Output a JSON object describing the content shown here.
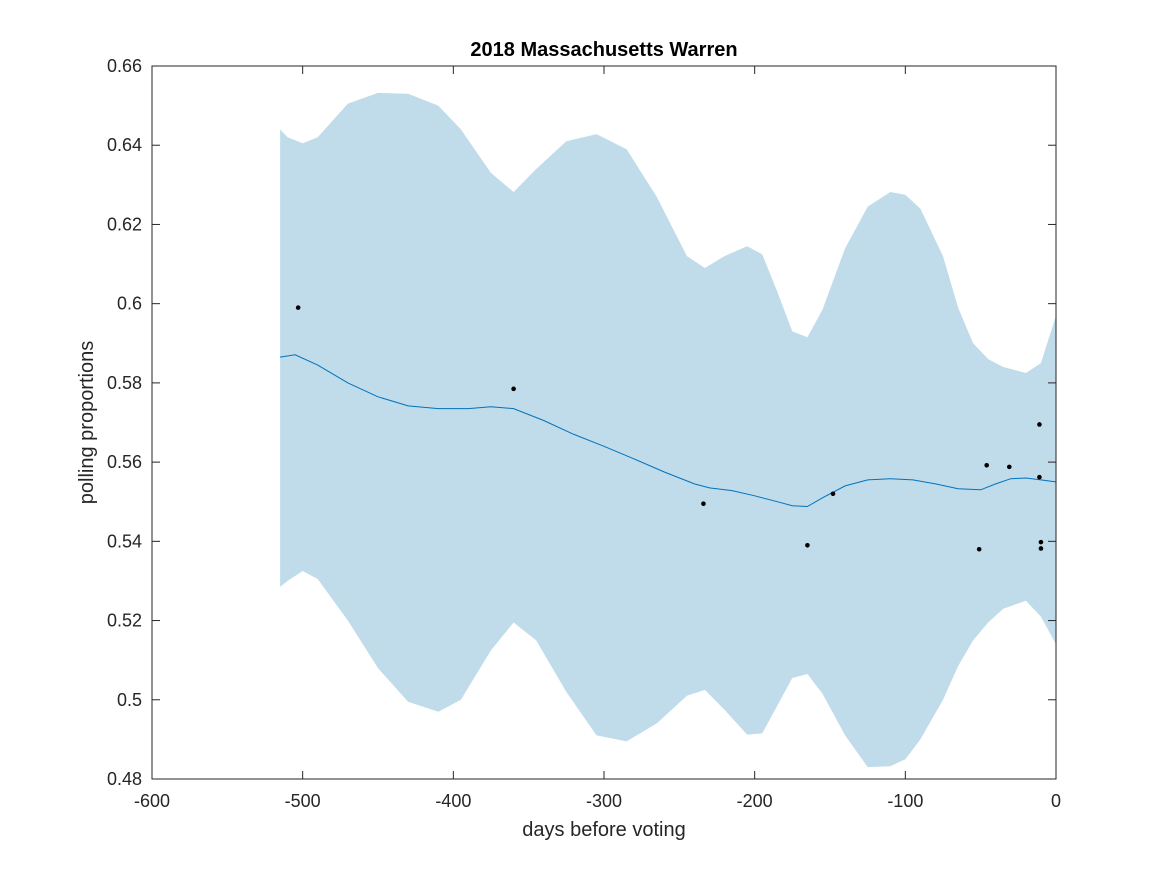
{
  "chart_data": {
    "type": "line",
    "title": "2018 Massachusetts Warren",
    "xlabel": "days before voting",
    "ylabel": "polling proportions",
    "xlim": [
      -600,
      0
    ],
    "ylim": [
      0.48,
      0.66
    ],
    "xticks": [
      -600,
      -500,
      -400,
      -300,
      -200,
      -100,
      0
    ],
    "xtick_labels": [
      "-600",
      "-500",
      "-400",
      "-300",
      "-200",
      "-100",
      "0"
    ],
    "yticks": [
      0.48,
      0.5,
      0.52,
      0.54,
      0.56,
      0.58,
      0.6,
      0.62,
      0.64,
      0.66
    ],
    "ytick_labels": [
      "0.48",
      "0.5",
      "0.52",
      "0.54",
      "0.56",
      "0.58",
      "0.6",
      "0.62",
      "0.64",
      "0.66"
    ],
    "grid": false,
    "colors": {
      "line": "#0072bd",
      "band": "#c0dcea",
      "points": "#000000",
      "axes": "#262626"
    },
    "series": [
      {
        "type": "line",
        "x": [
          -515,
          -505,
          -490,
          -470,
          -450,
          -430,
          -410,
          -390,
          -375,
          -360,
          -340,
          -320,
          -300,
          -280,
          -260,
          -240,
          -230,
          -215,
          -200,
          -185,
          -175,
          -165,
          -155,
          -140,
          -125,
          -110,
          -95,
          -80,
          -65,
          -50,
          -40,
          -30,
          -20,
          -10,
          0
        ],
        "y": [
          0.5865,
          0.5871,
          0.5845,
          0.58,
          0.5765,
          0.5742,
          0.5735,
          0.5735,
          0.574,
          0.5735,
          0.5705,
          0.567,
          0.564,
          0.5608,
          0.5575,
          0.5545,
          0.5535,
          0.5528,
          0.5515,
          0.55,
          0.549,
          0.5488,
          0.551,
          0.554,
          0.5555,
          0.5558,
          0.5555,
          0.5545,
          0.5533,
          0.553,
          0.5545,
          0.5558,
          0.556,
          0.5555,
          0.555
        ]
      },
      {
        "type": "band",
        "x": [
          -515,
          -510,
          -500,
          -490,
          -470,
          -450,
          -430,
          -410,
          -395,
          -375,
          -360,
          -345,
          -325,
          -305,
          -285,
          -265,
          -245,
          -233,
          -220,
          -205,
          -195,
          -185,
          -175,
          -165,
          -155,
          -140,
          -125,
          -110,
          -100,
          -90,
          -75,
          -65,
          -55,
          -45,
          -35,
          -20,
          -10,
          0
        ],
        "upper": [
          0.644,
          0.642,
          0.6405,
          0.642,
          0.6505,
          0.6532,
          0.653,
          0.65,
          0.644,
          0.633,
          0.6282,
          0.634,
          0.641,
          0.6428,
          0.639,
          0.627,
          0.612,
          0.609,
          0.612,
          0.6145,
          0.6125,
          0.603,
          0.593,
          0.5915,
          0.5985,
          0.614,
          0.6245,
          0.6282,
          0.6275,
          0.624,
          0.612,
          0.599,
          0.59,
          0.586,
          0.584,
          0.5825,
          0.585,
          0.597
        ],
        "lower": [
          0.5285,
          0.53,
          0.5325,
          0.5305,
          0.52,
          0.508,
          0.4995,
          0.497,
          0.5,
          0.5125,
          0.5195,
          0.515,
          0.502,
          0.491,
          0.4895,
          0.494,
          0.501,
          0.5025,
          0.4975,
          0.4912,
          0.4915,
          0.4985,
          0.5055,
          0.5065,
          0.5015,
          0.491,
          0.483,
          0.4832,
          0.485,
          0.49,
          0.5,
          0.5085,
          0.515,
          0.5195,
          0.523,
          0.525,
          0.521,
          0.514
        ]
      },
      {
        "type": "scatter",
        "x": [
          -503,
          -360,
          -234,
          -165,
          -148,
          -51,
          -46,
          -31,
          -11,
          -11,
          -10,
          -10
        ],
        "y": [
          0.599,
          0.5785,
          0.5495,
          0.539,
          0.552,
          0.538,
          0.5592,
          0.5588,
          0.5695,
          0.5562,
          0.5398,
          0.5382
        ]
      }
    ]
  }
}
